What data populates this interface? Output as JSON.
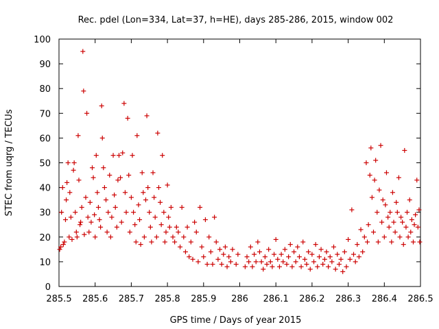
{
  "chart_data": {
    "type": "scatter",
    "title": "Rec. pdel (Lon=334, Lat=37, h=HE), days 285-286, 2015, window 002",
    "xlabel": "GPS time / Days of year 2015",
    "ylabel": "STEC from uqrg / TECUs",
    "xlim": [
      285.5,
      286.5
    ],
    "ylim": [
      0,
      100
    ],
    "xticks": [
      "285.5",
      "285.6",
      "285.7",
      "285.8",
      "285.9",
      "286",
      "286.1",
      "286.2",
      "286.3",
      "286.4",
      "286.5"
    ],
    "yticks": [
      "0",
      "10",
      "20",
      "30",
      "40",
      "50",
      "60",
      "70",
      "80",
      "90",
      "100"
    ],
    "grid": false,
    "marker": "plus",
    "color": "#cc0000",
    "points": [
      [
        285.502,
        15
      ],
      [
        285.505,
        16
      ],
      [
        285.507,
        30
      ],
      [
        285.51,
        40
      ],
      [
        285.512,
        17
      ],
      [
        285.515,
        18
      ],
      [
        285.518,
        27
      ],
      [
        285.52,
        35
      ],
      [
        285.522,
        42
      ],
      [
        285.525,
        50
      ],
      [
        285.528,
        20
      ],
      [
        285.53,
        38
      ],
      [
        285.533,
        28
      ],
      [
        285.536,
        19
      ],
      [
        285.54,
        47
      ],
      [
        285.542,
        50
      ],
      [
        285.545,
        30
      ],
      [
        285.548,
        22
      ],
      [
        285.55,
        20
      ],
      [
        285.553,
        61
      ],
      [
        285.555,
        43
      ],
      [
        285.558,
        25
      ],
      [
        285.56,
        26
      ],
      [
        285.563,
        32
      ],
      [
        285.566,
        95
      ],
      [
        285.568,
        79
      ],
      [
        285.57,
        21
      ],
      [
        285.574,
        36
      ],
      [
        285.577,
        70
      ],
      [
        285.58,
        28
      ],
      [
        285.583,
        22
      ],
      [
        285.586,
        34
      ],
      [
        285.589,
        26
      ],
      [
        285.592,
        48
      ],
      [
        285.595,
        44
      ],
      [
        285.598,
        29
      ],
      [
        285.6,
        20
      ],
      [
        285.603,
        53
      ],
      [
        285.606,
        38
      ],
      [
        285.609,
        32
      ],
      [
        285.612,
        27
      ],
      [
        285.615,
        24
      ],
      [
        285.618,
        73
      ],
      [
        285.62,
        60
      ],
      [
        285.623,
        48
      ],
      [
        285.626,
        40
      ],
      [
        285.63,
        35
      ],
      [
        285.633,
        22
      ],
      [
        285.636,
        30
      ],
      [
        285.64,
        45
      ],
      [
        285.643,
        20
      ],
      [
        285.646,
        28
      ],
      [
        285.65,
        53
      ],
      [
        285.653,
        37
      ],
      [
        285.656,
        32
      ],
      [
        285.66,
        24
      ],
      [
        285.663,
        43
      ],
      [
        285.666,
        53
      ],
      [
        285.67,
        44
      ],
      [
        285.673,
        26
      ],
      [
        285.676,
        54
      ],
      [
        285.68,
        74
      ],
      [
        285.683,
        38
      ],
      [
        285.686,
        30
      ],
      [
        285.69,
        68
      ],
      [
        285.693,
        45
      ],
      [
        285.696,
        22
      ],
      [
        285.7,
        36
      ],
      [
        285.703,
        53
      ],
      [
        285.706,
        30
      ],
      [
        285.71,
        25
      ],
      [
        285.713,
        18
      ],
      [
        285.716,
        61
      ],
      [
        285.72,
        33
      ],
      [
        285.723,
        27
      ],
      [
        285.726,
        17
      ],
      [
        285.73,
        46
      ],
      [
        285.733,
        38
      ],
      [
        285.736,
        20
      ],
      [
        285.74,
        35
      ],
      [
        285.743,
        69
      ],
      [
        285.746,
        40
      ],
      [
        285.75,
        30
      ],
      [
        285.753,
        24
      ],
      [
        285.756,
        18
      ],
      [
        285.76,
        46
      ],
      [
        285.763,
        36
      ],
      [
        285.766,
        28
      ],
      [
        285.77,
        20
      ],
      [
        285.773,
        62
      ],
      [
        285.776,
        40
      ],
      [
        285.78,
        34
      ],
      [
        285.783,
        25
      ],
      [
        285.786,
        53
      ],
      [
        285.79,
        30
      ],
      [
        285.793,
        18
      ],
      [
        285.796,
        22
      ],
      [
        285.8,
        41
      ],
      [
        285.803,
        28
      ],
      [
        285.806,
        24
      ],
      [
        285.81,
        32
      ],
      [
        285.815,
        20
      ],
      [
        285.82,
        18
      ],
      [
        285.825,
        24
      ],
      [
        285.83,
        22
      ],
      [
        285.835,
        16
      ],
      [
        285.84,
        32
      ],
      [
        285.845,
        20
      ],
      [
        285.85,
        14
      ],
      [
        285.855,
        24
      ],
      [
        285.86,
        12
      ],
      [
        285.865,
        18
      ],
      [
        285.87,
        11
      ],
      [
        285.875,
        26
      ],
      [
        285.88,
        22
      ],
      [
        285.885,
        10
      ],
      [
        285.89,
        32
      ],
      [
        285.895,
        16
      ],
      [
        285.9,
        12
      ],
      [
        285.905,
        27
      ],
      [
        285.91,
        9
      ],
      [
        285.915,
        20
      ],
      [
        285.92,
        14
      ],
      [
        285.925,
        9
      ],
      [
        285.93,
        28
      ],
      [
        285.935,
        18
      ],
      [
        285.94,
        11
      ],
      [
        285.945,
        15
      ],
      [
        285.95,
        9
      ],
      [
        285.955,
        13
      ],
      [
        285.96,
        16
      ],
      [
        285.965,
        8
      ],
      [
        285.97,
        12
      ],
      [
        285.975,
        10
      ],
      [
        285.98,
        15
      ],
      [
        285.99,
        9
      ],
      [
        285.995,
        13
      ],
      [
        286.015,
        8
      ],
      [
        286.02,
        12
      ],
      [
        286.025,
        10
      ],
      [
        286.03,
        16
      ],
      [
        286.035,
        8
      ],
      [
        286.04,
        13
      ],
      [
        286.045,
        10
      ],
      [
        286.05,
        18
      ],
      [
        286.055,
        14
      ],
      [
        286.06,
        10
      ],
      [
        286.065,
        7
      ],
      [
        286.07,
        12
      ],
      [
        286.075,
        9
      ],
      [
        286.08,
        15
      ],
      [
        286.085,
        10
      ],
      [
        286.09,
        8
      ],
      [
        286.095,
        13
      ],
      [
        286.1,
        19
      ],
      [
        286.105,
        11
      ],
      [
        286.11,
        8
      ],
      [
        286.115,
        13
      ],
      [
        286.12,
        10
      ],
      [
        286.125,
        15
      ],
      [
        286.13,
        9
      ],
      [
        286.135,
        12
      ],
      [
        286.14,
        17
      ],
      [
        286.145,
        8
      ],
      [
        286.15,
        14
      ],
      [
        286.155,
        10
      ],
      [
        286.16,
        16
      ],
      [
        286.165,
        12
      ],
      [
        286.17,
        8
      ],
      [
        286.175,
        18
      ],
      [
        286.18,
        11
      ],
      [
        286.185,
        9
      ],
      [
        286.19,
        14
      ],
      [
        286.195,
        7
      ],
      [
        286.2,
        13
      ],
      [
        286.205,
        10
      ],
      [
        286.21,
        17
      ],
      [
        286.215,
        8
      ],
      [
        286.22,
        12
      ],
      [
        286.225,
        15
      ],
      [
        286.23,
        9
      ],
      [
        286.235,
        11
      ],
      [
        286.24,
        14
      ],
      [
        286.245,
        8
      ],
      [
        286.25,
        12
      ],
      [
        286.255,
        10
      ],
      [
        286.26,
        16
      ],
      [
        286.265,
        7
      ],
      [
        286.27,
        13
      ],
      [
        286.275,
        9
      ],
      [
        286.28,
        11
      ],
      [
        286.285,
        6
      ],
      [
        286.29,
        14
      ],
      [
        286.295,
        8
      ],
      [
        286.3,
        19
      ],
      [
        286.305,
        11
      ],
      [
        286.31,
        31
      ],
      [
        286.315,
        13
      ],
      [
        286.32,
        10
      ],
      [
        286.325,
        17
      ],
      [
        286.33,
        12
      ],
      [
        286.335,
        23
      ],
      [
        286.34,
        14
      ],
      [
        286.345,
        20
      ],
      [
        286.35,
        50
      ],
      [
        286.353,
        18
      ],
      [
        286.356,
        25
      ],
      [
        286.36,
        45
      ],
      [
        286.363,
        56
      ],
      [
        286.366,
        36
      ],
      [
        286.37,
        22
      ],
      [
        286.373,
        43
      ],
      [
        286.376,
        51
      ],
      [
        286.38,
        30
      ],
      [
        286.383,
        18
      ],
      [
        286.386,
        39
      ],
      [
        286.39,
        57
      ],
      [
        286.393,
        26
      ],
      [
        286.396,
        35
      ],
      [
        286.4,
        20
      ],
      [
        286.403,
        33
      ],
      [
        286.406,
        46
      ],
      [
        286.41,
        28
      ],
      [
        286.413,
        24
      ],
      [
        286.416,
        30
      ],
      [
        286.42,
        18
      ],
      [
        286.423,
        38
      ],
      [
        286.426,
        26
      ],
      [
        286.43,
        22
      ],
      [
        286.433,
        34
      ],
      [
        286.436,
        30
      ],
      [
        286.44,
        44
      ],
      [
        286.443,
        20
      ],
      [
        286.446,
        28
      ],
      [
        286.45,
        26
      ],
      [
        286.453,
        17
      ],
      [
        286.456,
        55
      ],
      [
        286.46,
        24
      ],
      [
        286.463,
        30
      ],
      [
        286.466,
        20
      ],
      [
        286.47,
        35
      ],
      [
        286.473,
        22
      ],
      [
        286.476,
        27
      ],
      [
        286.48,
        18
      ],
      [
        286.483,
        25
      ],
      [
        286.486,
        29
      ],
      [
        286.49,
        43
      ],
      [
        286.493,
        24
      ],
      [
        286.496,
        31
      ],
      [
        286.498,
        18
      ]
    ]
  }
}
